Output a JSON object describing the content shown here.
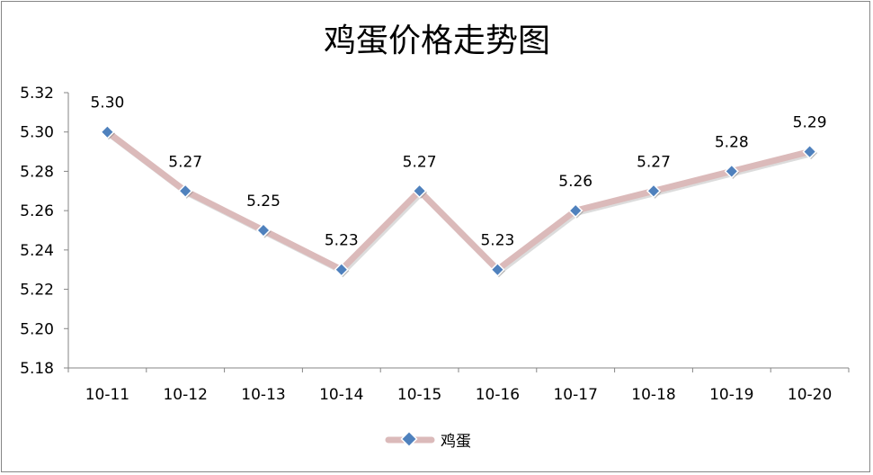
{
  "chart_data": {
    "type": "line",
    "title": "鸡蛋价格走势图",
    "categories": [
      "10-11",
      "10-12",
      "10-13",
      "10-14",
      "10-15",
      "10-16",
      "10-17",
      "10-18",
      "10-19",
      "10-20"
    ],
    "series": [
      {
        "name": "鸡蛋",
        "values": [
          5.3,
          5.27,
          5.25,
          5.23,
          5.27,
          5.23,
          5.26,
          5.27,
          5.28,
          5.29
        ],
        "data_labels": [
          "5.30",
          "5.27",
          "5.25",
          "5.23",
          "5.27",
          "5.23",
          "5.26",
          "5.27",
          "5.28",
          "5.29"
        ]
      }
    ],
    "ylim": [
      5.18,
      5.32
    ],
    "yticks": [
      "5.18",
      "5.20",
      "5.22",
      "5.24",
      "5.26",
      "5.28",
      "5.30",
      "5.32"
    ],
    "grid": false,
    "legend": "bottom",
    "colors": {
      "line": "#dbbaba",
      "marker": "#4f81bd",
      "marker_border": "#ffffff",
      "axis": "#868686"
    }
  }
}
